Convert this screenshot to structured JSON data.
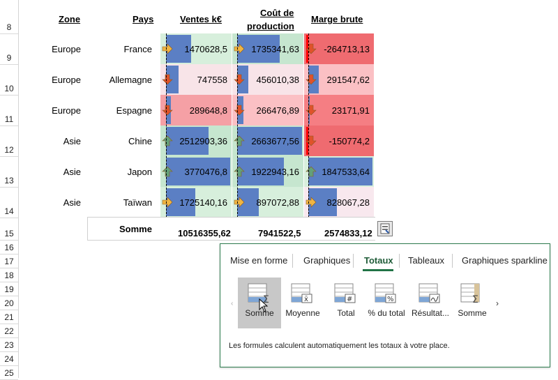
{
  "columns": {
    "zone": "Zone",
    "pays": "Pays",
    "ventes": "Ventes k€",
    "cout_l1": "Coût de",
    "cout_l2": "production",
    "marge": "Marge brute"
  },
  "row_numbers": [
    "8",
    "9",
    "10",
    "11",
    "12",
    "13",
    "14",
    "15",
    "16",
    "17",
    "18",
    "19",
    "20",
    "21",
    "22",
    "23",
    "24",
    "25"
  ],
  "rows": [
    {
      "zone": "Europe",
      "pays": "France",
      "ventes": "1470628,5",
      "cout": "1735341,63",
      "marge": "-264713,13"
    },
    {
      "zone": "Europe",
      "pays": "Allemagne",
      "ventes": "747558",
      "cout": "456010,38",
      "marge": "291547,62"
    },
    {
      "zone": "Europe",
      "pays": "Espagne",
      "ventes": "289648,8",
      "cout": "266476,89",
      "marge": "23171,91"
    },
    {
      "zone": "Asie",
      "pays": "Chine",
      "ventes": "2512903,36",
      "cout": "2663677,56",
      "marge": "-150774,2"
    },
    {
      "zone": "Asie",
      "pays": "Japon",
      "ventes": "3770476,8",
      "cout": "1922943,16",
      "marge": "1847533,64"
    },
    {
      "zone": "Asie",
      "pays": "Taïwan",
      "ventes": "1725140,16",
      "cout": "897072,88",
      "marge": "828067,28"
    }
  ],
  "totals": {
    "label": "Somme",
    "ventes": "10516355,62",
    "cout": "7941522,5",
    "marge": "2574833,12"
  },
  "quick_analysis": {
    "tabs": [
      "Mise en forme",
      "Graphiques",
      "Totaux",
      "Tableaux",
      "Graphiques sparkline"
    ],
    "active_tab": "Totaux",
    "options": [
      "Somme",
      "Moyenne",
      "Total",
      "% du total",
      "Résultat...",
      "Somme"
    ],
    "description": "Les formules calculent automatiquement les totaux à votre place."
  },
  "colors": {
    "accent": "#217346",
    "bar": "#5b7fc4",
    "green_fill": "#c6e6cf",
    "red_fill": "#f5868a",
    "arrow_up": "#63a07a",
    "arrow_down": "#e0522a",
    "arrow_side": "#f0b542"
  }
}
